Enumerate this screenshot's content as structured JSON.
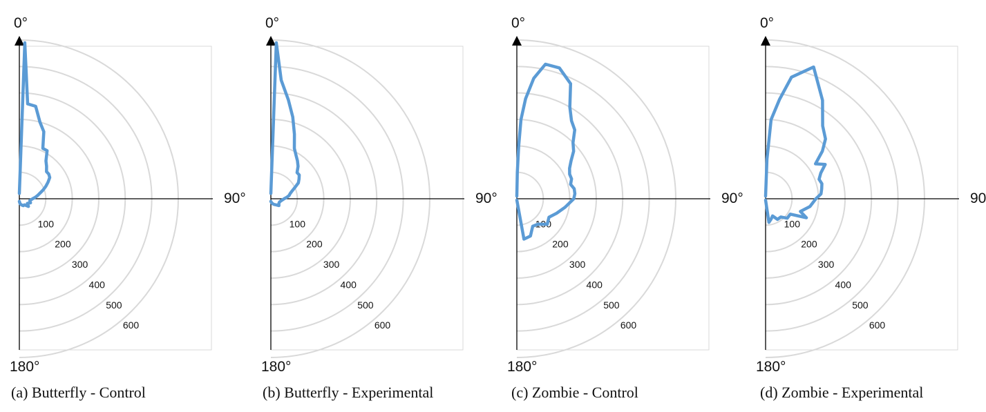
{
  "angle_labels": {
    "top": "0°",
    "right": "90°",
    "bottom": "180°"
  },
  "ring_labels": [
    "100",
    "200",
    "300",
    "400",
    "500",
    "600"
  ],
  "colors": {
    "series": "#5b9bd5",
    "grid": "#d9d9d9",
    "axis": "#000000",
    "frame": "#d9d9d9"
  },
  "chart_data": [
    {
      "type": "polar-line",
      "caption": "(a) Butterfly - Control",
      "radial_ticks": [
        100,
        200,
        300,
        400,
        500,
        600
      ],
      "angular_range_deg": [
        0,
        180
      ],
      "grid": true,
      "points": [
        {
          "angle": 0,
          "r": 20
        },
        {
          "angle": 2,
          "r": 590
        },
        {
          "angle": 5,
          "r": 360
        },
        {
          "angle": 10,
          "r": 355
        },
        {
          "angle": 15,
          "r": 300
        },
        {
          "angle": 20,
          "r": 270
        },
        {
          "angle": 25,
          "r": 210
        },
        {
          "angle": 30,
          "r": 210
        },
        {
          "angle": 35,
          "r": 175
        },
        {
          "angle": 40,
          "r": 160
        },
        {
          "angle": 45,
          "r": 145
        },
        {
          "angle": 50,
          "r": 145
        },
        {
          "angle": 55,
          "r": 140
        },
        {
          "angle": 60,
          "r": 125
        },
        {
          "angle": 65,
          "r": 110
        },
        {
          "angle": 70,
          "r": 95
        },
        {
          "angle": 75,
          "r": 80
        },
        {
          "angle": 80,
          "r": 70
        },
        {
          "angle": 85,
          "r": 60
        },
        {
          "angle": 90,
          "r": 50
        },
        {
          "angle": 100,
          "r": 40
        },
        {
          "angle": 110,
          "r": 45
        },
        {
          "angle": 120,
          "r": 35
        },
        {
          "angle": 130,
          "r": 45
        },
        {
          "angle": 140,
          "r": 30
        },
        {
          "angle": 150,
          "r": 30
        },
        {
          "angle": 160,
          "r": 25
        },
        {
          "angle": 170,
          "r": 20
        },
        {
          "angle": 175,
          "r": 15
        },
        {
          "angle": 180,
          "r": 10
        }
      ]
    },
    {
      "type": "polar-line",
      "caption": "(b) Butterfly - Experimental",
      "radial_ticks": [
        100,
        200,
        300,
        400,
        500,
        600
      ],
      "angular_range_deg": [
        0,
        180
      ],
      "grid": true,
      "points": [
        {
          "angle": 0,
          "r": 20
        },
        {
          "angle": 2,
          "r": 590
        },
        {
          "angle": 5,
          "r": 450
        },
        {
          "angle": 10,
          "r": 380
        },
        {
          "angle": 15,
          "r": 320
        },
        {
          "angle": 20,
          "r": 260
        },
        {
          "angle": 25,
          "r": 210
        },
        {
          "angle": 30,
          "r": 190
        },
        {
          "angle": 35,
          "r": 175
        },
        {
          "angle": 40,
          "r": 160
        },
        {
          "angle": 45,
          "r": 140
        },
        {
          "angle": 50,
          "r": 140
        },
        {
          "angle": 55,
          "r": 130
        },
        {
          "angle": 60,
          "r": 120
        },
        {
          "angle": 65,
          "r": 100
        },
        {
          "angle": 70,
          "r": 85
        },
        {
          "angle": 75,
          "r": 75
        },
        {
          "angle": 80,
          "r": 70
        },
        {
          "angle": 85,
          "r": 60
        },
        {
          "angle": 90,
          "r": 50
        },
        {
          "angle": 100,
          "r": 40
        },
        {
          "angle": 110,
          "r": 35
        },
        {
          "angle": 120,
          "r": 35
        },
        {
          "angle": 130,
          "r": 40
        },
        {
          "angle": 140,
          "r": 30
        },
        {
          "angle": 150,
          "r": 25
        },
        {
          "angle": 160,
          "r": 20
        },
        {
          "angle": 170,
          "r": 15
        },
        {
          "angle": 180,
          "r": 10
        }
      ]
    },
    {
      "type": "polar-line",
      "caption": "(c) Zombie - Control",
      "radial_ticks": [
        100,
        200,
        300,
        400,
        500,
        600
      ],
      "angular_range_deg": [
        0,
        180
      ],
      "grid": true,
      "points": [
        {
          "angle": 0,
          "r": 10
        },
        {
          "angle": 1,
          "r": 100
        },
        {
          "angle": 2,
          "r": 200
        },
        {
          "angle": 3,
          "r": 300
        },
        {
          "angle": 5,
          "r": 380
        },
        {
          "angle": 8,
          "r": 460
        },
        {
          "angle": 12,
          "r": 520
        },
        {
          "angle": 18,
          "r": 520
        },
        {
          "angle": 25,
          "r": 480
        },
        {
          "angle": 30,
          "r": 400
        },
        {
          "angle": 35,
          "r": 360
        },
        {
          "angle": 40,
          "r": 340
        },
        {
          "angle": 45,
          "r": 300
        },
        {
          "angle": 50,
          "r": 280
        },
        {
          "angle": 55,
          "r": 250
        },
        {
          "angle": 60,
          "r": 230
        },
        {
          "angle": 65,
          "r": 220
        },
        {
          "angle": 70,
          "r": 220
        },
        {
          "angle": 75,
          "r": 210
        },
        {
          "angle": 80,
          "r": 220
        },
        {
          "angle": 85,
          "r": 220
        },
        {
          "angle": 90,
          "r": 215
        },
        {
          "angle": 100,
          "r": 185
        },
        {
          "angle": 110,
          "r": 160
        },
        {
          "angle": 120,
          "r": 140
        },
        {
          "angle": 130,
          "r": 150
        },
        {
          "angle": 140,
          "r": 125
        },
        {
          "angle": 150,
          "r": 120
        },
        {
          "angle": 160,
          "r": 150
        },
        {
          "angle": 170,
          "r": 155
        },
        {
          "angle": 180,
          "r": 5
        }
      ]
    },
    {
      "type": "polar-line",
      "caption": "(d) Zombie - Experimental",
      "radial_ticks": [
        100,
        200,
        300,
        400,
        500,
        600
      ],
      "angular_range_deg": [
        0,
        180
      ],
      "grid": true,
      "points": [
        {
          "angle": 0,
          "r": 10
        },
        {
          "angle": 2,
          "r": 150
        },
        {
          "angle": 4,
          "r": 300
        },
        {
          "angle": 8,
          "r": 380
        },
        {
          "angle": 12,
          "r": 470
        },
        {
          "angle": 20,
          "r": 530
        },
        {
          "angle": 30,
          "r": 430
        },
        {
          "angle": 38,
          "r": 350
        },
        {
          "angle": 45,
          "r": 320
        },
        {
          "angle": 50,
          "r": 280
        },
        {
          "angle": 55,
          "r": 230
        },
        {
          "angle": 60,
          "r": 260
        },
        {
          "angle": 65,
          "r": 230
        },
        {
          "angle": 70,
          "r": 215
        },
        {
          "angle": 75,
          "r": 220
        },
        {
          "angle": 80,
          "r": 215
        },
        {
          "angle": 85,
          "r": 210
        },
        {
          "angle": 90,
          "r": 190
        },
        {
          "angle": 100,
          "r": 170
        },
        {
          "angle": 110,
          "r": 140
        },
        {
          "angle": 115,
          "r": 170
        },
        {
          "angle": 122,
          "r": 110
        },
        {
          "angle": 132,
          "r": 110
        },
        {
          "angle": 140,
          "r": 90
        },
        {
          "angle": 150,
          "r": 90
        },
        {
          "angle": 158,
          "r": 70
        },
        {
          "angle": 165,
          "r": 80
        },
        {
          "angle": 172,
          "r": 90
        },
        {
          "angle": 180,
          "r": 5
        }
      ]
    }
  ]
}
